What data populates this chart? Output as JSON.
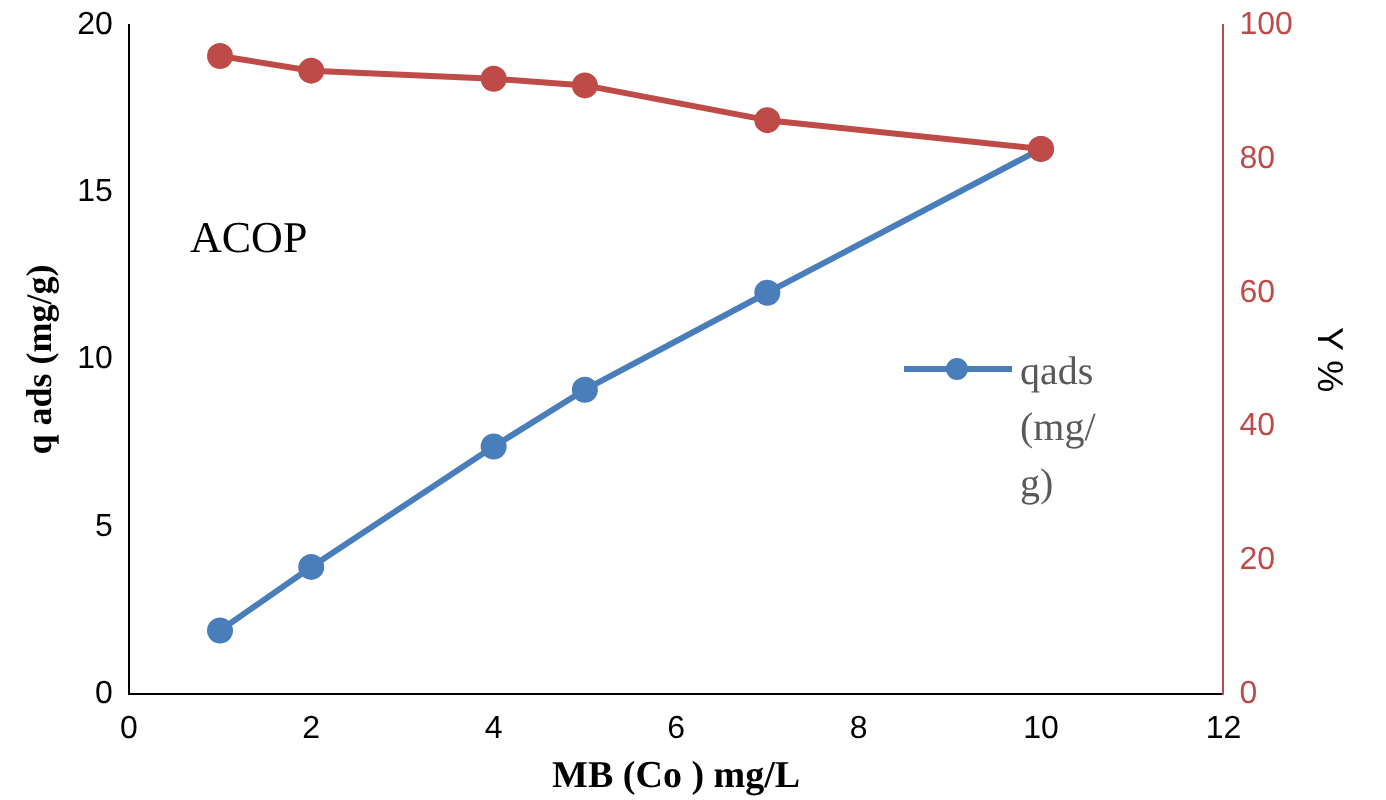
{
  "chart_data": {
    "type": "line",
    "xlabel": "MB (Co ) mg/L",
    "ylabel": "q ads (mg/g)",
    "y2label": "Y %",
    "annotations": [
      "ACOP"
    ],
    "xlim": [
      0,
      12
    ],
    "xticks": [
      0,
      2,
      4,
      6,
      8,
      10,
      12
    ],
    "ylim": [
      0,
      20
    ],
    "yticks": [
      0,
      5,
      10,
      15,
      20
    ],
    "y2lim": [
      0,
      100
    ],
    "y2ticks": [
      0,
      20,
      40,
      60,
      80,
      100
    ],
    "grid": false,
    "legend": "right",
    "marker": "circle",
    "line_style": "solid",
    "series": [
      {
        "name": "qads(mg/g)",
        "color": "#4a7ebb",
        "x": [
          1,
          2,
          4,
          5,
          7,
          10
        ],
        "values": [
          1.9,
          3.8,
          7.4,
          9.1,
          12.0,
          16.3
        ]
      },
      {
        "color": "#be4b48",
        "axis": "y2",
        "x": [
          1,
          2,
          4,
          5,
          7,
          10
        ],
        "values": [
          95.4,
          93.2,
          92.0,
          91.0,
          85.8,
          81.5
        ]
      }
    ]
  }
}
